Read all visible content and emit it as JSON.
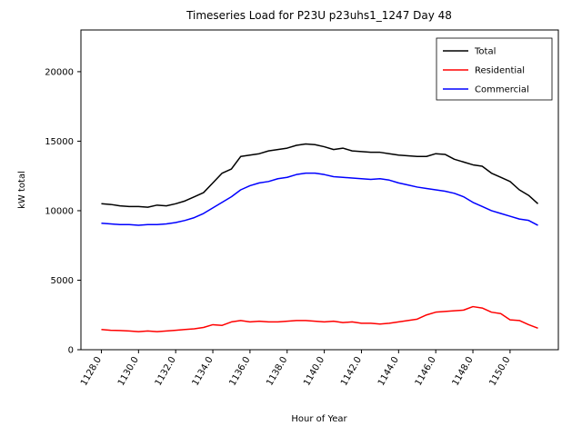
{
  "figure": {
    "title": "Timeseries Load for P23U p23uhs1_1247  Day 48"
  },
  "chart_data": {
    "type": "line",
    "title": "Timeseries Load for P23U p23uhs1_1247  Day 48",
    "xlabel": "Hour of Year",
    "ylabel": "kW total",
    "xlim": [
      1126.9,
      1152.6
    ],
    "ylim": [
      0,
      23000
    ],
    "grid": false,
    "legend_position": "upper right",
    "x_ticks": [
      1128,
      1130,
      1132,
      1134,
      1136,
      1138,
      1140,
      1142,
      1144,
      1146,
      1148,
      1150
    ],
    "x_tick_labels": [
      "1128.0",
      "1130.0",
      "1132.0",
      "1134.0",
      "1136.0",
      "1138.0",
      "1140.0",
      "1142.0",
      "1144.0",
      "1146.0",
      "1148.0",
      "1150.0"
    ],
    "y_ticks": [
      0,
      5000,
      10000,
      15000,
      20000
    ],
    "y_tick_labels": [
      "0",
      "5000",
      "10000",
      "15000",
      "20000"
    ],
    "x": [
      1128.0,
      1128.5,
      1129.0,
      1129.5,
      1130.0,
      1130.5,
      1131.0,
      1131.5,
      1132.0,
      1132.5,
      1133.0,
      1133.5,
      1134.0,
      1134.5,
      1135.0,
      1135.5,
      1136.0,
      1136.5,
      1137.0,
      1137.5,
      1138.0,
      1138.5,
      1139.0,
      1139.5,
      1140.0,
      1140.5,
      1141.0,
      1141.5,
      1142.0,
      1142.5,
      1143.0,
      1143.5,
      1144.0,
      1144.5,
      1145.0,
      1145.5,
      1146.0,
      1146.5,
      1147.0,
      1147.5,
      1148.0,
      1148.5,
      1149.0,
      1149.5,
      1150.0,
      1150.5,
      1151.0,
      1151.5
    ],
    "series": [
      {
        "name": "Total",
        "color": "#000000",
        "values": [
          10500,
          10450,
          10350,
          10300,
          10300,
          10250,
          10400,
          10350,
          10500,
          10700,
          11000,
          11300,
          12000,
          12700,
          13000,
          13900,
          14000,
          14100,
          14300,
          14400,
          14500,
          14700,
          14800,
          14750,
          14600,
          14400,
          14500,
          14300,
          14250,
          14200,
          14200,
          14100,
          14000,
          13950,
          13900,
          13900,
          14100,
          14050,
          13700,
          13500,
          13300,
          13200,
          12700,
          12400,
          12100,
          11500,
          11100,
          10500
        ]
      },
      {
        "name": "Residential",
        "color": "#ff0000",
        "values": [
          1450,
          1400,
          1380,
          1350,
          1300,
          1350,
          1300,
          1350,
          1400,
          1450,
          1500,
          1600,
          1800,
          1750,
          2000,
          2100,
          2000,
          2050,
          2000,
          2000,
          2050,
          2100,
          2100,
          2050,
          2000,
          2050,
          1950,
          2000,
          1900,
          1900,
          1850,
          1900,
          2000,
          2100,
          2200,
          2500,
          2700,
          2750,
          2800,
          2850,
          3100,
          3000,
          2700,
          2600,
          2150,
          2100,
          1800,
          1550
        ]
      },
      {
        "name": "Commercial",
        "color": "#0000ff",
        "values": [
          9100,
          9050,
          9000,
          9000,
          8950,
          9000,
          9000,
          9050,
          9150,
          9300,
          9500,
          9800,
          10200,
          10600,
          11000,
          11500,
          11800,
          12000,
          12100,
          12300,
          12400,
          12600,
          12700,
          12700,
          12600,
          12450,
          12400,
          12350,
          12300,
          12250,
          12300,
          12200,
          12000,
          11850,
          11700,
          11600,
          11500,
          11400,
          11250,
          11000,
          10600,
          10300,
          10000,
          9800,
          9600,
          9400,
          9300,
          8950
        ]
      }
    ]
  }
}
